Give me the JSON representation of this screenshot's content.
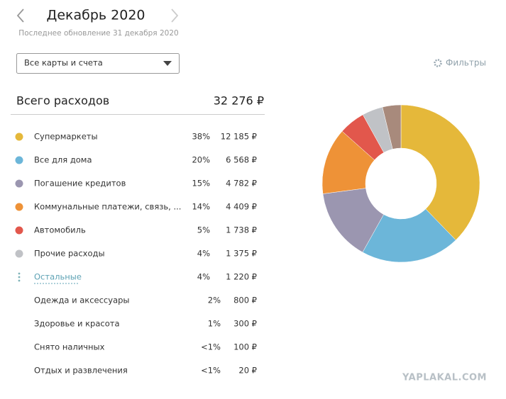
{
  "header": {
    "title": "Декабрь 2020",
    "subtitle": "Последнее обновление 31 декабря 2020"
  },
  "dropdown": {
    "label": "Все карты и счета"
  },
  "filters": {
    "label": "Фильтры"
  },
  "total": {
    "label": "Всего расходов",
    "amount_label": "32 276 ₽"
  },
  "rows": [
    {
      "name": "Супермаркеты",
      "percent": "38%",
      "amount": 12185,
      "amount_label": "12 185 ₽",
      "color": "#e5b83a"
    },
    {
      "name": "Все для дома",
      "percent": "20%",
      "amount": 6568,
      "amount_label": "6 568 ₽",
      "color": "#6cb6d9"
    },
    {
      "name": "Погашение кредитов",
      "percent": "15%",
      "amount": 4782,
      "amount_label": "4 782 ₽",
      "color": "#9b96b0"
    },
    {
      "name": "Коммунальные платежи, связь, ...",
      "percent": "14%",
      "amount": 4409,
      "amount_label": "4 409 ₽",
      "color": "#ee9237"
    },
    {
      "name": "Автомобиль",
      "percent": "5%",
      "amount": 1738,
      "amount_label": "1 738 ₽",
      "color": "#e2574c"
    },
    {
      "name": "Прочие расходы",
      "percent": "4%",
      "amount": 1375,
      "amount_label": "1 375 ₽",
      "color": "#c0c2c6"
    }
  ],
  "others": {
    "name": "Остальные",
    "percent": "4%",
    "amount": 1220,
    "amount_label": "1 220 ₽",
    "color": "#a88a7c",
    "items": [
      {
        "name": "Одежда и аксессуары",
        "percent": "2%",
        "amount_label": "800 ₽"
      },
      {
        "name": "Здоровье и красота",
        "percent": "1%",
        "amount_label": "300 ₽"
      },
      {
        "name": "Снято наличных",
        "percent": "<1%",
        "amount_label": "100 ₽"
      },
      {
        "name": "Отдых и развлечения",
        "percent": "<1%",
        "amount_label": "20 ₽"
      }
    ]
  },
  "watermark": "YAPLAKAL.COM"
}
